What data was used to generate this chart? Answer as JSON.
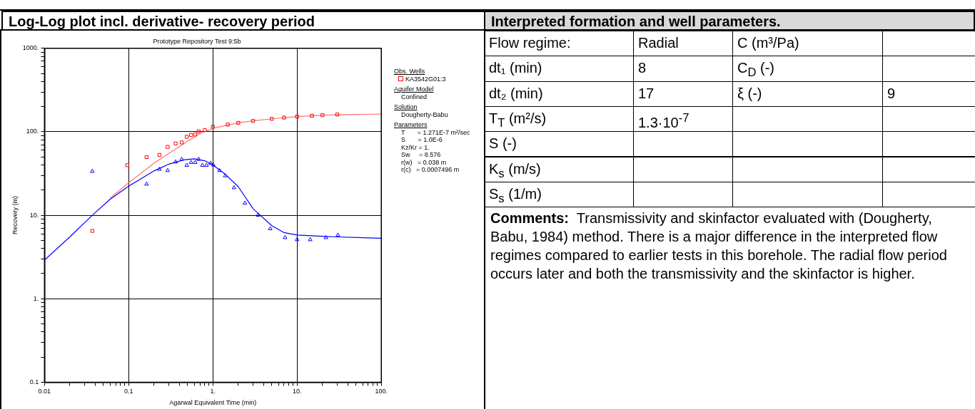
{
  "chart_data": [
    {
      "type": "scatter",
      "title": "Log-Log plot incl. derivative- recovery period",
      "subtitle": "Prototype Repository Test 9:5b",
      "xlabel": "Agarwal Equivalent Time (min)",
      "ylabel": "Recovery (m)",
      "log": "xy",
      "grid": true,
      "legend": "right",
      "legend_title": "Obs. Wells",
      "xlim": [
        0.01,
        100
      ],
      "ylim": [
        0.1,
        1000
      ],
      "xticks": [
        {
          "value": 0.01,
          "label": "0.01"
        },
        {
          "value": 0.02,
          "label": null
        },
        {
          "value": 0.03,
          "label": null
        },
        {
          "value": 0.04,
          "label": null
        },
        {
          "value": 0.05,
          "label": null
        },
        {
          "value": 0.06,
          "label": null
        },
        {
          "value": 0.07,
          "label": null
        },
        {
          "value": 0.08,
          "label": null
        },
        {
          "value": 0.09,
          "label": null
        },
        {
          "value": 0.1,
          "label": "0.1"
        },
        {
          "value": 0.2,
          "label": null
        },
        {
          "value": 0.3,
          "label": null
        },
        {
          "value": 0.4,
          "label": null
        },
        {
          "value": 0.5,
          "label": null
        },
        {
          "value": 0.6,
          "label": null
        },
        {
          "value": 0.7,
          "label": null
        },
        {
          "value": 0.8,
          "label": null
        },
        {
          "value": 0.9,
          "label": null
        },
        {
          "value": 1,
          "label": "1."
        },
        {
          "value": 2,
          "label": null
        },
        {
          "value": 3,
          "label": null
        },
        {
          "value": 4,
          "label": null
        },
        {
          "value": 5,
          "label": null
        },
        {
          "value": 6,
          "label": null
        },
        {
          "value": 7,
          "label": null
        },
        {
          "value": 8,
          "label": null
        },
        {
          "value": 9,
          "label": null
        },
        {
          "value": 10,
          "label": "10."
        },
        {
          "value": 20,
          "label": null
        },
        {
          "value": 30,
          "label": null
        },
        {
          "value": 40,
          "label": null
        },
        {
          "value": 50,
          "label": null
        },
        {
          "value": 60,
          "label": null
        },
        {
          "value": 70,
          "label": null
        },
        {
          "value": 80,
          "label": null
        },
        {
          "value": 90,
          "label": null
        },
        {
          "value": 100,
          "label": "100."
        }
      ],
      "yticks": [
        {
          "value": 0.1,
          "label": "0.1"
        },
        {
          "value": 0.2,
          "label": null
        },
        {
          "value": 0.3,
          "label": null
        },
        {
          "value": 0.4,
          "label": null
        },
        {
          "value": 0.5,
          "label": null
        },
        {
          "value": 0.6,
          "label": null
        },
        {
          "value": 0.7,
          "label": null
        },
        {
          "value": 0.8,
          "label": null
        },
        {
          "value": 0.9,
          "label": null
        },
        {
          "value": 1,
          "label": "1."
        },
        {
          "value": 2,
          "label": null
        },
        {
          "value": 3,
          "label": null
        },
        {
          "value": 4,
          "label": null
        },
        {
          "value": 5,
          "label": null
        },
        {
          "value": 6,
          "label": null
        },
        {
          "value": 7,
          "label": null
        },
        {
          "value": 8,
          "label": null
        },
        {
          "value": 9,
          "label": null
        },
        {
          "value": 10,
          "label": "10."
        },
        {
          "value": 20,
          "label": null
        },
        {
          "value": 30,
          "label": null
        },
        {
          "value": 40,
          "label": null
        },
        {
          "value": 50,
          "label": null
        },
        {
          "value": 60,
          "label": null
        },
        {
          "value": 70,
          "label": null
        },
        {
          "value": 80,
          "label": null
        },
        {
          "value": 90,
          "label": null
        },
        {
          "value": 100,
          "label": "100."
        },
        {
          "value": 200,
          "label": null
        },
        {
          "value": 300,
          "label": null
        },
        {
          "value": 400,
          "label": null
        },
        {
          "value": 500,
          "label": null
        },
        {
          "value": 600,
          "label": null
        },
        {
          "value": 700,
          "label": null
        },
        {
          "value": 800,
          "label": null
        },
        {
          "value": 900,
          "label": null
        },
        {
          "value": 1000,
          "label": "1000."
        }
      ],
      "series": [
        {
          "type": "line",
          "color": "#ff7070",
          "marker": "none",
          "line_style": "solid",
          "x": [
            0.06,
            0.1,
            0.2,
            0.3,
            0.5,
            0.7,
            1,
            2,
            3,
            5,
            10,
            20,
            30,
            100
          ],
          "values": [
            16,
            24.5,
            42,
            55,
            77,
            95,
            110,
            128,
            135,
            143,
            152,
            158,
            160,
            163
          ]
        },
        {
          "type": "line",
          "color": "#0000ff",
          "marker": "none",
          "line_style": "solid",
          "x": [
            0.01,
            0.02,
            0.037,
            0.06,
            0.1,
            0.2,
            0.3,
            0.45,
            0.6,
            0.8,
            1,
            1.4,
            2,
            3,
            5,
            7,
            10,
            20,
            30,
            100
          ],
          "values": [
            2.9,
            5.5,
            10,
            15.5,
            22.3,
            34,
            41,
            46,
            47.5,
            45,
            40,
            31,
            22,
            12,
            7.5,
            6.2,
            5.8,
            5.6,
            5.5,
            5.3
          ]
        },
        {
          "name": "KA3542G01:3",
          "color": "#ff0000",
          "marker": "square",
          "x": [
            0.037,
            0.096,
            0.163,
            0.232,
            0.29,
            0.361,
            0.426,
            0.489,
            0.55,
            0.617,
            0.677,
            0.8,
            1,
            1.5,
            2,
            3,
            5,
            7,
            10,
            15,
            20,
            30
          ],
          "values": [
            6.5,
            39.8,
            49.7,
            52.9,
            66,
            72.4,
            74.6,
            87.1,
            91.5,
            92.7,
            101,
            105,
            115,
            122,
            128,
            135,
            143,
            148,
            152,
            156,
            158,
            161
          ]
        },
        {
          "color": "#0000ff",
          "marker": "triangle",
          "x": [
            0.037,
            0.163,
            0.232,
            0.29,
            0.361,
            0.426,
            0.489,
            0.55,
            0.617,
            0.677,
            0.75,
            0.84,
            0.94,
            1.01,
            1.2,
            1.4,
            1.78,
            2.4,
            3.43,
            4.8,
            7.2,
            10,
            14.3,
            22,
            30.5
          ],
          "values": [
            33.6,
            23.6,
            35.6,
            34.4,
            43.6,
            46.8,
            39.7,
            43,
            43,
            46.8,
            39.7,
            39.7,
            42,
            40,
            34.3,
            29.7,
            21.4,
            14,
            10,
            6.9,
            5.4,
            5.1,
            5.1,
            5.4,
            5.8
          ]
        }
      ],
      "annotations": [
        "Aquifer Model",
        "Confined",
        "Solution",
        "Dougherty-Babu",
        "Parameters",
        "T       = 1.271E-7 m²/sec",
        "S       = 1.0E-6",
        "Kz/Kr = 1.",
        "Sw     = 8.576",
        "r(w)   = 0.038 m",
        "r(c)   = 0.0007496 m"
      ]
    },
    {
      "type": "other",
      "title": "Interpreted formation and well parameters.",
      "cell_labels": [
        [
          "Flow regime:",
          "Radial",
          "C (m³/Pa)",
          null
        ],
        [
          "dt₁ (min)",
          "8",
          "C$_{D}$ (-)",
          null
        ],
        [
          "dt₂ (min)",
          "17",
          "ξ (-)",
          "9"
        ],
        [
          "T$_{T}$ (m²/s)",
          "1.3·10$^{-7}$",
          null,
          null
        ],
        [
          "S (-)",
          null,
          null,
          null
        ],
        [
          "K$_{s}$ (m/s)",
          null,
          null,
          null
        ],
        [
          "S$_{s}$ (1/m)",
          null,
          null,
          null
        ]
      ],
      "annotations": [
        "Comments:",
        "Transmissivity and skinfactor evaluated with (Dougherty, Babu, 1984) method. There is a major difference in the interpreted flow regimes compared to earlier tests in this borehole. The radial flow period occurs later and both the transmissivity and the skinfactor is higher."
      ]
    }
  ]
}
